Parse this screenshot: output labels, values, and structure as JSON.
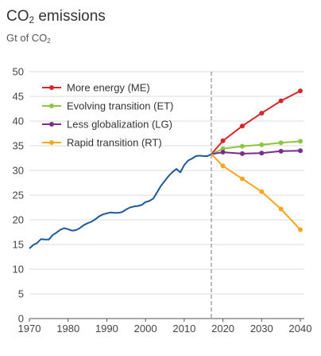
{
  "chart_data": {
    "type": "line",
    "title_main": "CO",
    "title_sub": "2",
    "title_rest": " emissions",
    "ylabel_main": "Gt of CO",
    "ylabel_sub": "2",
    "xlim": [
      1970,
      2040
    ],
    "ylim": [
      0,
      50
    ],
    "x_ticks": [
      1970,
      1980,
      1990,
      2000,
      2010,
      2020,
      2030,
      2040
    ],
    "y_ticks": [
      0,
      5,
      10,
      15,
      20,
      25,
      30,
      35,
      40,
      45,
      50
    ],
    "grid": true,
    "legend_position": "top-left",
    "projection_start": 2017,
    "historical": {
      "color": "#1f5a96",
      "x": [
        1970,
        1971,
        1972,
        1973,
        1974,
        1975,
        1976,
        1977,
        1978,
        1979,
        1980,
        1981,
        1982,
        1983,
        1984,
        1985,
        1986,
        1987,
        1988,
        1989,
        1990,
        1991,
        1992,
        1993,
        1994,
        1995,
        1996,
        1997,
        1998,
        1999,
        2000,
        2001,
        2002,
        2003,
        2004,
        2005,
        2006,
        2007,
        2008,
        2009,
        2010,
        2011,
        2012,
        2013,
        2014,
        2015,
        2016,
        2017
      ],
      "y": [
        14.2,
        14.9,
        15.3,
        16.1,
        16.0,
        16.0,
        16.9,
        17.4,
        18.0,
        18.3,
        18.1,
        17.8,
        17.9,
        18.3,
        18.9,
        19.3,
        19.6,
        20.1,
        20.7,
        21.1,
        21.3,
        21.5,
        21.4,
        21.4,
        21.6,
        22.1,
        22.5,
        22.7,
        22.8,
        23.0,
        23.6,
        23.8,
        24.3,
        25.6,
        26.9,
        27.9,
        28.9,
        29.7,
        30.3,
        29.6,
        31.1,
        32.0,
        32.4,
        32.9,
        33.0,
        32.9,
        32.9,
        33.3
      ]
    },
    "series": [
      {
        "name": "More energy (ME)",
        "color": "#d7262b",
        "x": [
          2017,
          2020,
          2025,
          2030,
          2035,
          2040
        ],
        "y": [
          33.3,
          36.0,
          39.0,
          41.6,
          44.1,
          46.1
        ]
      },
      {
        "name": "Evolving transition (ET)",
        "color": "#8cc63f",
        "x": [
          2017,
          2020,
          2025,
          2030,
          2035,
          2040
        ],
        "y": [
          33.3,
          34.4,
          34.9,
          35.2,
          35.6,
          35.9
        ]
      },
      {
        "name": "Less globalization (LG)",
        "color": "#7b2d8e",
        "x": [
          2017,
          2020,
          2025,
          2030,
          2035,
          2040
        ],
        "y": [
          33.3,
          33.7,
          33.4,
          33.5,
          33.9,
          34.0
        ]
      },
      {
        "name": "Rapid transition (RT)",
        "color": "#f5a623",
        "x": [
          2017,
          2020,
          2025,
          2030,
          2035,
          2040
        ],
        "y": [
          33.3,
          30.9,
          28.3,
          25.7,
          22.2,
          18.0
        ]
      }
    ]
  }
}
